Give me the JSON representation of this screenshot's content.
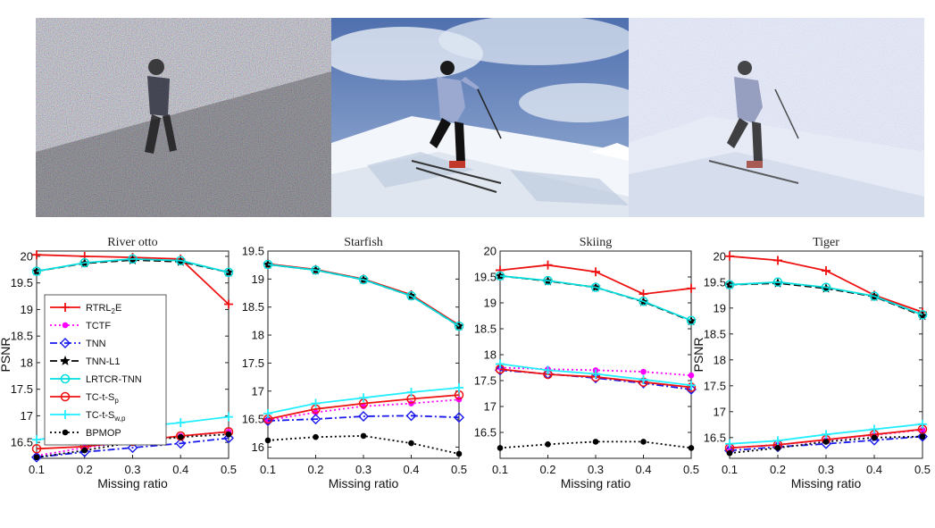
{
  "chart_data": [
    {
      "type": "line",
      "title": "River otto",
      "xlabel": "Missing ratio",
      "ylabel": "PSNR",
      "x": [
        0.1,
        0.2,
        0.3,
        0.4,
        0.5
      ],
      "xticks": [
        "0.1",
        "0.2",
        "0.3",
        "0.4",
        "0.5"
      ],
      "ylim": [
        16.2,
        20.1
      ],
      "yticks": [
        16.5,
        17,
        17.5,
        18,
        18.5,
        19,
        19.5,
        20
      ],
      "legend": "left",
      "series": [
        {
          "name": "RTRL2E",
          "values": [
            20.03,
            20.0,
            19.98,
            19.95,
            19.1
          ]
        },
        {
          "name": "TCTF",
          "values": [
            16.25,
            16.4,
            16.52,
            16.62,
            16.7
          ]
        },
        {
          "name": "TNN",
          "values": [
            16.22,
            16.32,
            16.4,
            16.48,
            16.58
          ]
        },
        {
          "name": "TNN-L1",
          "values": [
            19.72,
            19.87,
            19.93,
            19.9,
            19.7
          ]
        },
        {
          "name": "LRTCR-TNN",
          "values": [
            19.72,
            19.88,
            19.95,
            19.92,
            19.7
          ]
        },
        {
          "name": "TC-t-Sp",
          "values": [
            16.38,
            16.42,
            16.52,
            16.62,
            16.7
          ]
        },
        {
          "name": "TC-t-Sw,p",
          "values": [
            16.55,
            16.65,
            16.78,
            16.87,
            16.98
          ]
        },
        {
          "name": "BPMOP",
          "values": [
            16.22,
            16.35,
            16.5,
            16.6,
            16.65
          ]
        }
      ]
    },
    {
      "type": "line",
      "title": "Starfish",
      "xlabel": "Missing ratio",
      "ylabel": "",
      "x": [
        0.1,
        0.2,
        0.3,
        0.4,
        0.5
      ],
      "xticks": [
        "0.1",
        "0.2",
        "0.3",
        "0.4",
        "0.5"
      ],
      "ylim": [
        15.8,
        19.5
      ],
      "yticks": [
        16,
        16.5,
        17,
        17.5,
        18,
        18.5,
        19,
        19.5
      ],
      "series": [
        {
          "name": "RTRL2E",
          "values": [
            19.27,
            19.17,
            19.0,
            18.72,
            18.18
          ]
        },
        {
          "name": "TCTF",
          "values": [
            16.48,
            16.62,
            16.73,
            16.78,
            16.85
          ]
        },
        {
          "name": "TNN",
          "values": [
            16.47,
            16.5,
            16.55,
            16.56,
            16.53
          ]
        },
        {
          "name": "TNN-L1",
          "values": [
            19.26,
            19.16,
            18.99,
            18.7,
            18.16
          ]
        },
        {
          "name": "LRTCR-TNN",
          "values": [
            19.26,
            19.16,
            18.99,
            18.7,
            18.16
          ]
        },
        {
          "name": "TC-t-Sp",
          "values": [
            16.5,
            16.68,
            16.78,
            16.86,
            16.93
          ]
        },
        {
          "name": "TC-t-Sw,p",
          "values": [
            16.6,
            16.78,
            16.88,
            16.98,
            17.06
          ]
        },
        {
          "name": "BPMOP",
          "values": [
            16.12,
            16.18,
            16.2,
            16.07,
            15.88
          ]
        }
      ]
    },
    {
      "type": "line",
      "title": "Skiing",
      "xlabel": "Missing ratio",
      "ylabel": "",
      "x": [
        0.1,
        0.2,
        0.3,
        0.4,
        0.5
      ],
      "xticks": [
        "0.1",
        "0.2",
        "0.3",
        "0.4",
        "0.5"
      ],
      "ylim": [
        16.0,
        20.0
      ],
      "yticks": [
        16.5,
        17,
        17.5,
        18,
        18.5,
        19,
        19.5,
        20
      ],
      "series": [
        {
          "name": "RTRL2E",
          "values": [
            19.63,
            19.73,
            19.6,
            19.17,
            19.28
          ]
        },
        {
          "name": "TCTF",
          "values": [
            17.75,
            17.72,
            17.7,
            17.67,
            17.6
          ]
        },
        {
          "name": "TNN",
          "values": [
            17.7,
            17.63,
            17.55,
            17.45,
            17.33
          ]
        },
        {
          "name": "TNN-L1",
          "values": [
            19.52,
            19.42,
            19.3,
            19.02,
            18.65
          ]
        },
        {
          "name": "LRTCR-TNN",
          "values": [
            19.52,
            19.43,
            19.3,
            19.03,
            18.66
          ]
        },
        {
          "name": "TC-t-Sp",
          "values": [
            17.72,
            17.62,
            17.57,
            17.47,
            17.37
          ]
        },
        {
          "name": "TC-t-Sw,p",
          "values": [
            17.82,
            17.7,
            17.63,
            17.52,
            17.41
          ]
        },
        {
          "name": "BPMOP",
          "values": [
            16.2,
            16.27,
            16.32,
            16.32,
            16.2
          ]
        }
      ]
    },
    {
      "type": "line",
      "title": "Tiger",
      "xlabel": "Missing ratio",
      "ylabel": "PSNR",
      "x": [
        0.1,
        0.2,
        0.3,
        0.4,
        0.5
      ],
      "xticks": [
        "0.1",
        "0.2",
        "0.3",
        "0.4",
        "0.5"
      ],
      "ylim": [
        16.1,
        20.1
      ],
      "yticks": [
        16.5,
        17,
        17.5,
        18,
        18.5,
        19,
        19.5,
        20
      ],
      "series": [
        {
          "name": "RTRL2E",
          "values": [
            20.0,
            19.92,
            19.72,
            19.25,
            18.92
          ]
        },
        {
          "name": "TCTF",
          "values": [
            16.3,
            16.36,
            16.45,
            16.55,
            16.65
          ]
        },
        {
          "name": "TNN",
          "values": [
            16.25,
            16.32,
            16.38,
            16.45,
            16.52
          ]
        },
        {
          "name": "TNN-L1",
          "values": [
            19.45,
            19.48,
            19.38,
            19.22,
            18.85
          ]
        },
        {
          "name": "LRTCR-TNN",
          "values": [
            19.45,
            19.5,
            19.4,
            19.23,
            18.87
          ]
        },
        {
          "name": "TC-t-Sp",
          "values": [
            16.3,
            16.36,
            16.46,
            16.56,
            16.66
          ]
        },
        {
          "name": "TC-t-Sw,p",
          "values": [
            16.38,
            16.44,
            16.56,
            16.66,
            16.76
          ]
        },
        {
          "name": "BPMOP",
          "values": [
            16.2,
            16.3,
            16.42,
            16.5,
            16.52
          ]
        }
      ]
    }
  ],
  "legend_entries": [
    {
      "label": "RTRL",
      "sub": "2",
      "suffix": "E",
      "color": "#ee1111",
      "marker": "plus",
      "dash": ""
    },
    {
      "label": "TCTF",
      "sub": "",
      "suffix": "",
      "color": "#ff00ff",
      "marker": "dot",
      "dash": "2,3"
    },
    {
      "label": "TNN",
      "sub": "",
      "suffix": "",
      "color": "#1a1aee",
      "marker": "diamond",
      "dash": "8,3,2,3"
    },
    {
      "label": "TNN-L1",
      "sub": "",
      "suffix": "",
      "color": "#000000",
      "marker": "star",
      "dash": "8,4"
    },
    {
      "label": "LRTCR-TNN",
      "sub": "",
      "suffix": "",
      "color": "#00dddd",
      "marker": "circle",
      "dash": ""
    },
    {
      "label": "TC-t-S",
      "sub": "p",
      "suffix": "",
      "color": "#ee1111",
      "marker": "circle",
      "dash": ""
    },
    {
      "label": "TC-t-S",
      "sub": "w,p",
      "suffix": "",
      "color": "#22eeff",
      "marker": "plus",
      "dash": ""
    },
    {
      "label": "BPMOP",
      "sub": "",
      "suffix": "",
      "color": "#000000",
      "marker": "dot",
      "dash": "2,3"
    }
  ],
  "photos": [
    {
      "name": "noisy-skier-photo"
    },
    {
      "name": "clean-skier-photo"
    },
    {
      "name": "recovered-skier-photo"
    }
  ]
}
